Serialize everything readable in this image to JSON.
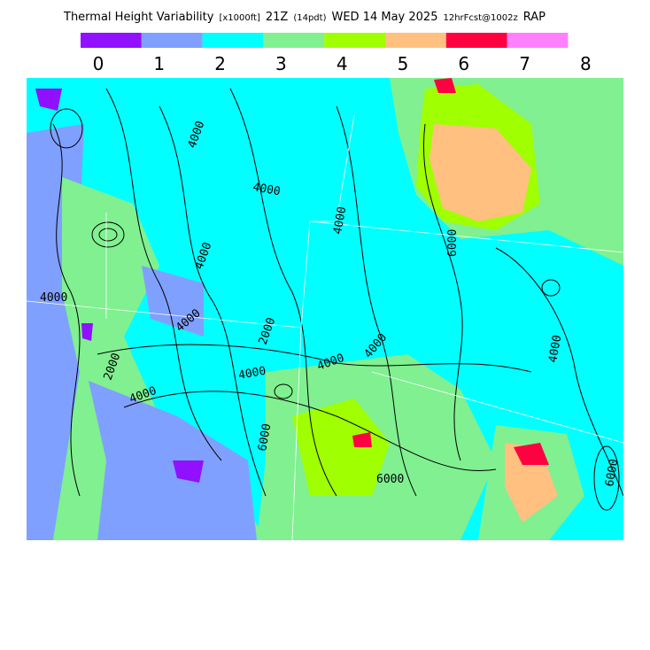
{
  "header": {
    "title_parts": [
      "Thermal Height Variability",
      "[x1000ft]",
      "21Z",
      "(14pdt)",
      "WED 14 May 2025",
      "12hrFcst@1002z",
      "RAP"
    ]
  },
  "legend": {
    "colors": [
      "#9010ff",
      "#80a0ff",
      "#00ffff",
      "#80f090",
      "#a0ff00",
      "#ffc080",
      "#ff0040",
      "#ff80ff"
    ],
    "labels": [
      "0",
      "1",
      "2",
      "3",
      "4",
      "5",
      "6",
      "7",
      "8"
    ]
  },
  "map": {
    "contour_labels": [
      "4000",
      "4000",
      "4000",
      "4000",
      "4000",
      "4000",
      "2000",
      "2000",
      "4000",
      "4000",
      "4000",
      "4000",
      "6000",
      "4000",
      "6000",
      "6000",
      "6000"
    ]
  }
}
